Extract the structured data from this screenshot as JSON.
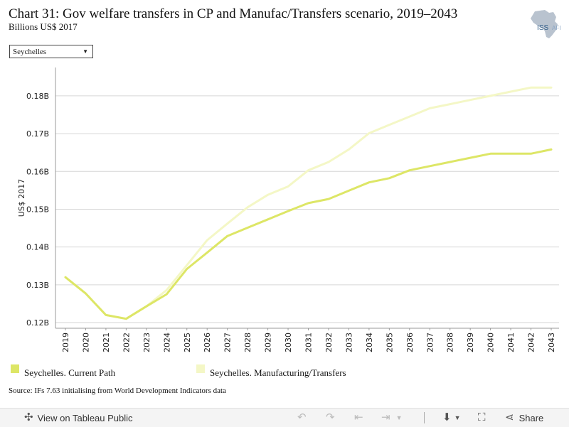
{
  "header": {
    "title": "Chart 31: Gov welfare transfers in CP and Manufac/Transfers scenario, 2019–2043",
    "subtitle": "Billions US$ 2017",
    "logo_text": "ISS",
    "logo_text_accent": "AFI"
  },
  "filter": {
    "selected": "Seychelles"
  },
  "footer": {
    "source": "Source: IFs 7.63 initialising from World Development Indicators data"
  },
  "toolbar": {
    "view_label": "View on Tableau Public",
    "share_label": "Share",
    "icons": [
      "tableau-icon",
      "undo-icon",
      "redo-icon",
      "revert-icon",
      "refresh-icon",
      "download-icon",
      "fullscreen-icon",
      "share-icon"
    ]
  },
  "colors": {
    "current_path": "#dde666",
    "manufacturing": "#f4f7c6",
    "grid": "#d6d6d6"
  },
  "chart_data": {
    "type": "line",
    "ylabel": "US$ 2017",
    "ylim": [
      0.1185,
      0.1875
    ],
    "yticks": [
      0.12,
      0.13,
      0.14,
      0.15,
      0.16,
      0.17,
      0.18
    ],
    "ytick_labels": [
      "0.12B",
      "0.13B",
      "0.14B",
      "0.15B",
      "0.16B",
      "0.17B",
      "0.18B"
    ],
    "x": [
      "2019",
      "2020",
      "2021",
      "2022",
      "2023",
      "2024",
      "2025",
      "2026",
      "2027",
      "2028",
      "2029",
      "2030",
      "2031",
      "2032",
      "2033",
      "2034",
      "2035",
      "2036",
      "2037",
      "2038",
      "2039",
      "2040",
      "2041",
      "2042",
      "2043"
    ],
    "legend_position": "bottom",
    "series": [
      {
        "name": "Seychelles. Current Path",
        "color": "#dde666",
        "values": [
          0.132,
          0.1277,
          0.122,
          0.121,
          0.1243,
          0.1275,
          0.1342,
          0.1385,
          0.1429,
          0.1451,
          0.1473,
          0.1495,
          0.1516,
          0.1527,
          0.1549,
          0.1571,
          0.1582,
          0.1603,
          0.1614,
          0.1625,
          0.1636,
          0.1647,
          0.1647,
          0.1647,
          0.1658
        ]
      },
      {
        "name": "Seychelles. Manufacturing/Transfers",
        "color": "#f4f7c6",
        "values": [
          0.132,
          0.1277,
          0.122,
          0.121,
          0.1243,
          0.1286,
          0.1352,
          0.1418,
          0.1462,
          0.1505,
          0.1538,
          0.156,
          0.1603,
          0.1625,
          0.1658,
          0.1701,
          0.1723,
          0.1745,
          0.1767,
          0.1778,
          0.1789,
          0.18,
          0.1811,
          0.1822,
          0.1822
        ]
      }
    ]
  }
}
